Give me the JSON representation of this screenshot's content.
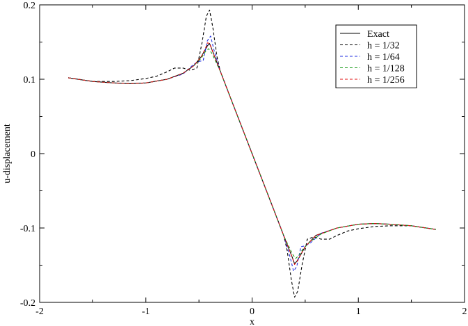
{
  "chart_data": {
    "type": "line",
    "title": "",
    "xlabel": "x",
    "ylabel": "u-displacement",
    "xlim": [
      -2,
      2
    ],
    "ylim": [
      -0.2,
      0.2
    ],
    "xticks": [
      -2,
      -1,
      0,
      1,
      2
    ],
    "xtick_labels": [
      "-2",
      "-1",
      "0",
      "1",
      "2"
    ],
    "yticks": [
      -0.2,
      -0.1,
      0,
      0.1,
      0.2
    ],
    "ytick_labels": [
      "-0.2",
      "-0.1",
      "0",
      "0.1",
      "0.2"
    ],
    "grid": false,
    "legend_position": "top-right",
    "series": [
      {
        "name": "Exact",
        "color": "#000000",
        "dash": "solid",
        "x": [
          -1.73,
          -1.5,
          -1.3,
          -1.15,
          -1.0,
          -0.8,
          -0.65,
          -0.55,
          -0.48,
          -0.44,
          -0.42,
          -0.4,
          -0.3,
          -0.2,
          -0.1,
          0.0,
          0.1,
          0.2,
          0.3,
          0.38,
          0.4,
          0.42,
          0.45,
          0.5,
          0.6,
          0.8,
          1.0,
          1.15,
          1.3,
          1.5,
          1.73
        ],
        "y": [
          0.102,
          0.097,
          0.095,
          0.094,
          0.095,
          0.1,
          0.108,
          0.118,
          0.13,
          0.14,
          0.145,
          0.148,
          0.111,
          0.074,
          0.037,
          0.0,
          -0.037,
          -0.074,
          -0.111,
          -0.14,
          -0.148,
          -0.145,
          -0.138,
          -0.125,
          -0.11,
          -0.1,
          -0.095,
          -0.094,
          -0.095,
          -0.097,
          -0.102
        ]
      },
      {
        "name": "h = 1/32",
        "color": "#000000",
        "dash": "dashed",
        "x": [
          -1.73,
          -1.5,
          -1.3,
          -1.15,
          -1.0,
          -0.9,
          -0.8,
          -0.73,
          -0.65,
          -0.58,
          -0.52,
          -0.47,
          -0.43,
          -0.4,
          -0.37,
          -0.33,
          -0.3,
          -0.2,
          -0.1,
          0.0,
          0.1,
          0.2,
          0.3,
          0.33,
          0.37,
          0.4,
          0.43,
          0.47,
          0.52,
          0.58,
          0.65,
          0.73,
          0.8,
          0.9,
          1.0,
          1.15,
          1.3,
          1.5,
          1.73
        ],
        "y": [
          0.102,
          0.097,
          0.097,
          0.098,
          0.101,
          0.104,
          0.11,
          0.115,
          0.115,
          0.112,
          0.115,
          0.15,
          0.185,
          0.193,
          0.17,
          0.13,
          0.111,
          0.074,
          0.037,
          0.0,
          -0.037,
          -0.074,
          -0.111,
          -0.13,
          -0.17,
          -0.193,
          -0.185,
          -0.15,
          -0.115,
          -0.112,
          -0.115,
          -0.115,
          -0.11,
          -0.104,
          -0.101,
          -0.098,
          -0.097,
          -0.097,
          -0.102
        ]
      },
      {
        "name": "h = 1/64",
        "color": "#1f2de0",
        "dash": "dashed",
        "x": [
          -1.73,
          -1.5,
          -1.3,
          -1.15,
          -1.0,
          -0.8,
          -0.65,
          -0.55,
          -0.5,
          -0.46,
          -0.42,
          -0.39,
          -0.36,
          -0.3,
          -0.2,
          -0.1,
          0.0,
          0.1,
          0.2,
          0.3,
          0.36,
          0.39,
          0.42,
          0.46,
          0.5,
          0.55,
          0.65,
          0.8,
          1.0,
          1.15,
          1.3,
          1.5,
          1.73
        ],
        "y": [
          0.102,
          0.097,
          0.095,
          0.094,
          0.095,
          0.1,
          0.107,
          0.12,
          0.124,
          0.125,
          0.152,
          0.158,
          0.14,
          0.111,
          0.074,
          0.037,
          0.0,
          -0.037,
          -0.074,
          -0.111,
          -0.14,
          -0.158,
          -0.152,
          -0.125,
          -0.124,
          -0.12,
          -0.107,
          -0.1,
          -0.095,
          -0.094,
          -0.095,
          -0.097,
          -0.102
        ]
      },
      {
        "name": "h = 1/128",
        "color": "#1a9a1a",
        "dash": "dashed",
        "x": [
          -1.73,
          -1.5,
          -1.3,
          -1.15,
          -1.0,
          -0.8,
          -0.65,
          -0.55,
          -0.48,
          -0.44,
          -0.41,
          -0.38,
          -0.3,
          -0.2,
          -0.1,
          0.0,
          0.1,
          0.2,
          0.3,
          0.38,
          0.41,
          0.44,
          0.48,
          0.55,
          0.65,
          0.8,
          1.0,
          1.15,
          1.3,
          1.5,
          1.73
        ],
        "y": [
          0.102,
          0.097,
          0.095,
          0.094,
          0.095,
          0.1,
          0.108,
          0.118,
          0.128,
          0.137,
          0.141,
          0.135,
          0.111,
          0.074,
          0.037,
          0.0,
          -0.037,
          -0.074,
          -0.111,
          -0.135,
          -0.141,
          -0.137,
          -0.128,
          -0.118,
          -0.108,
          -0.1,
          -0.095,
          -0.094,
          -0.095,
          -0.097,
          -0.102
        ]
      },
      {
        "name": "h = 1/256",
        "color": "#e01010",
        "dash": "dashed",
        "x": [
          -1.73,
          -1.5,
          -1.3,
          -1.15,
          -1.0,
          -0.8,
          -0.65,
          -0.55,
          -0.48,
          -0.44,
          -0.42,
          -0.4,
          -0.3,
          -0.2,
          -0.1,
          0.0,
          0.1,
          0.2,
          0.3,
          0.38,
          0.4,
          0.42,
          0.45,
          0.5,
          0.6,
          0.8,
          1.0,
          1.15,
          1.3,
          1.5,
          1.73
        ],
        "y": [
          0.102,
          0.097,
          0.095,
          0.094,
          0.095,
          0.1,
          0.108,
          0.118,
          0.13,
          0.141,
          0.149,
          0.148,
          0.111,
          0.074,
          0.037,
          0.0,
          -0.037,
          -0.074,
          -0.111,
          -0.14,
          -0.149,
          -0.146,
          -0.138,
          -0.125,
          -0.11,
          -0.1,
          -0.095,
          -0.094,
          -0.095,
          -0.097,
          -0.102
        ]
      }
    ]
  }
}
